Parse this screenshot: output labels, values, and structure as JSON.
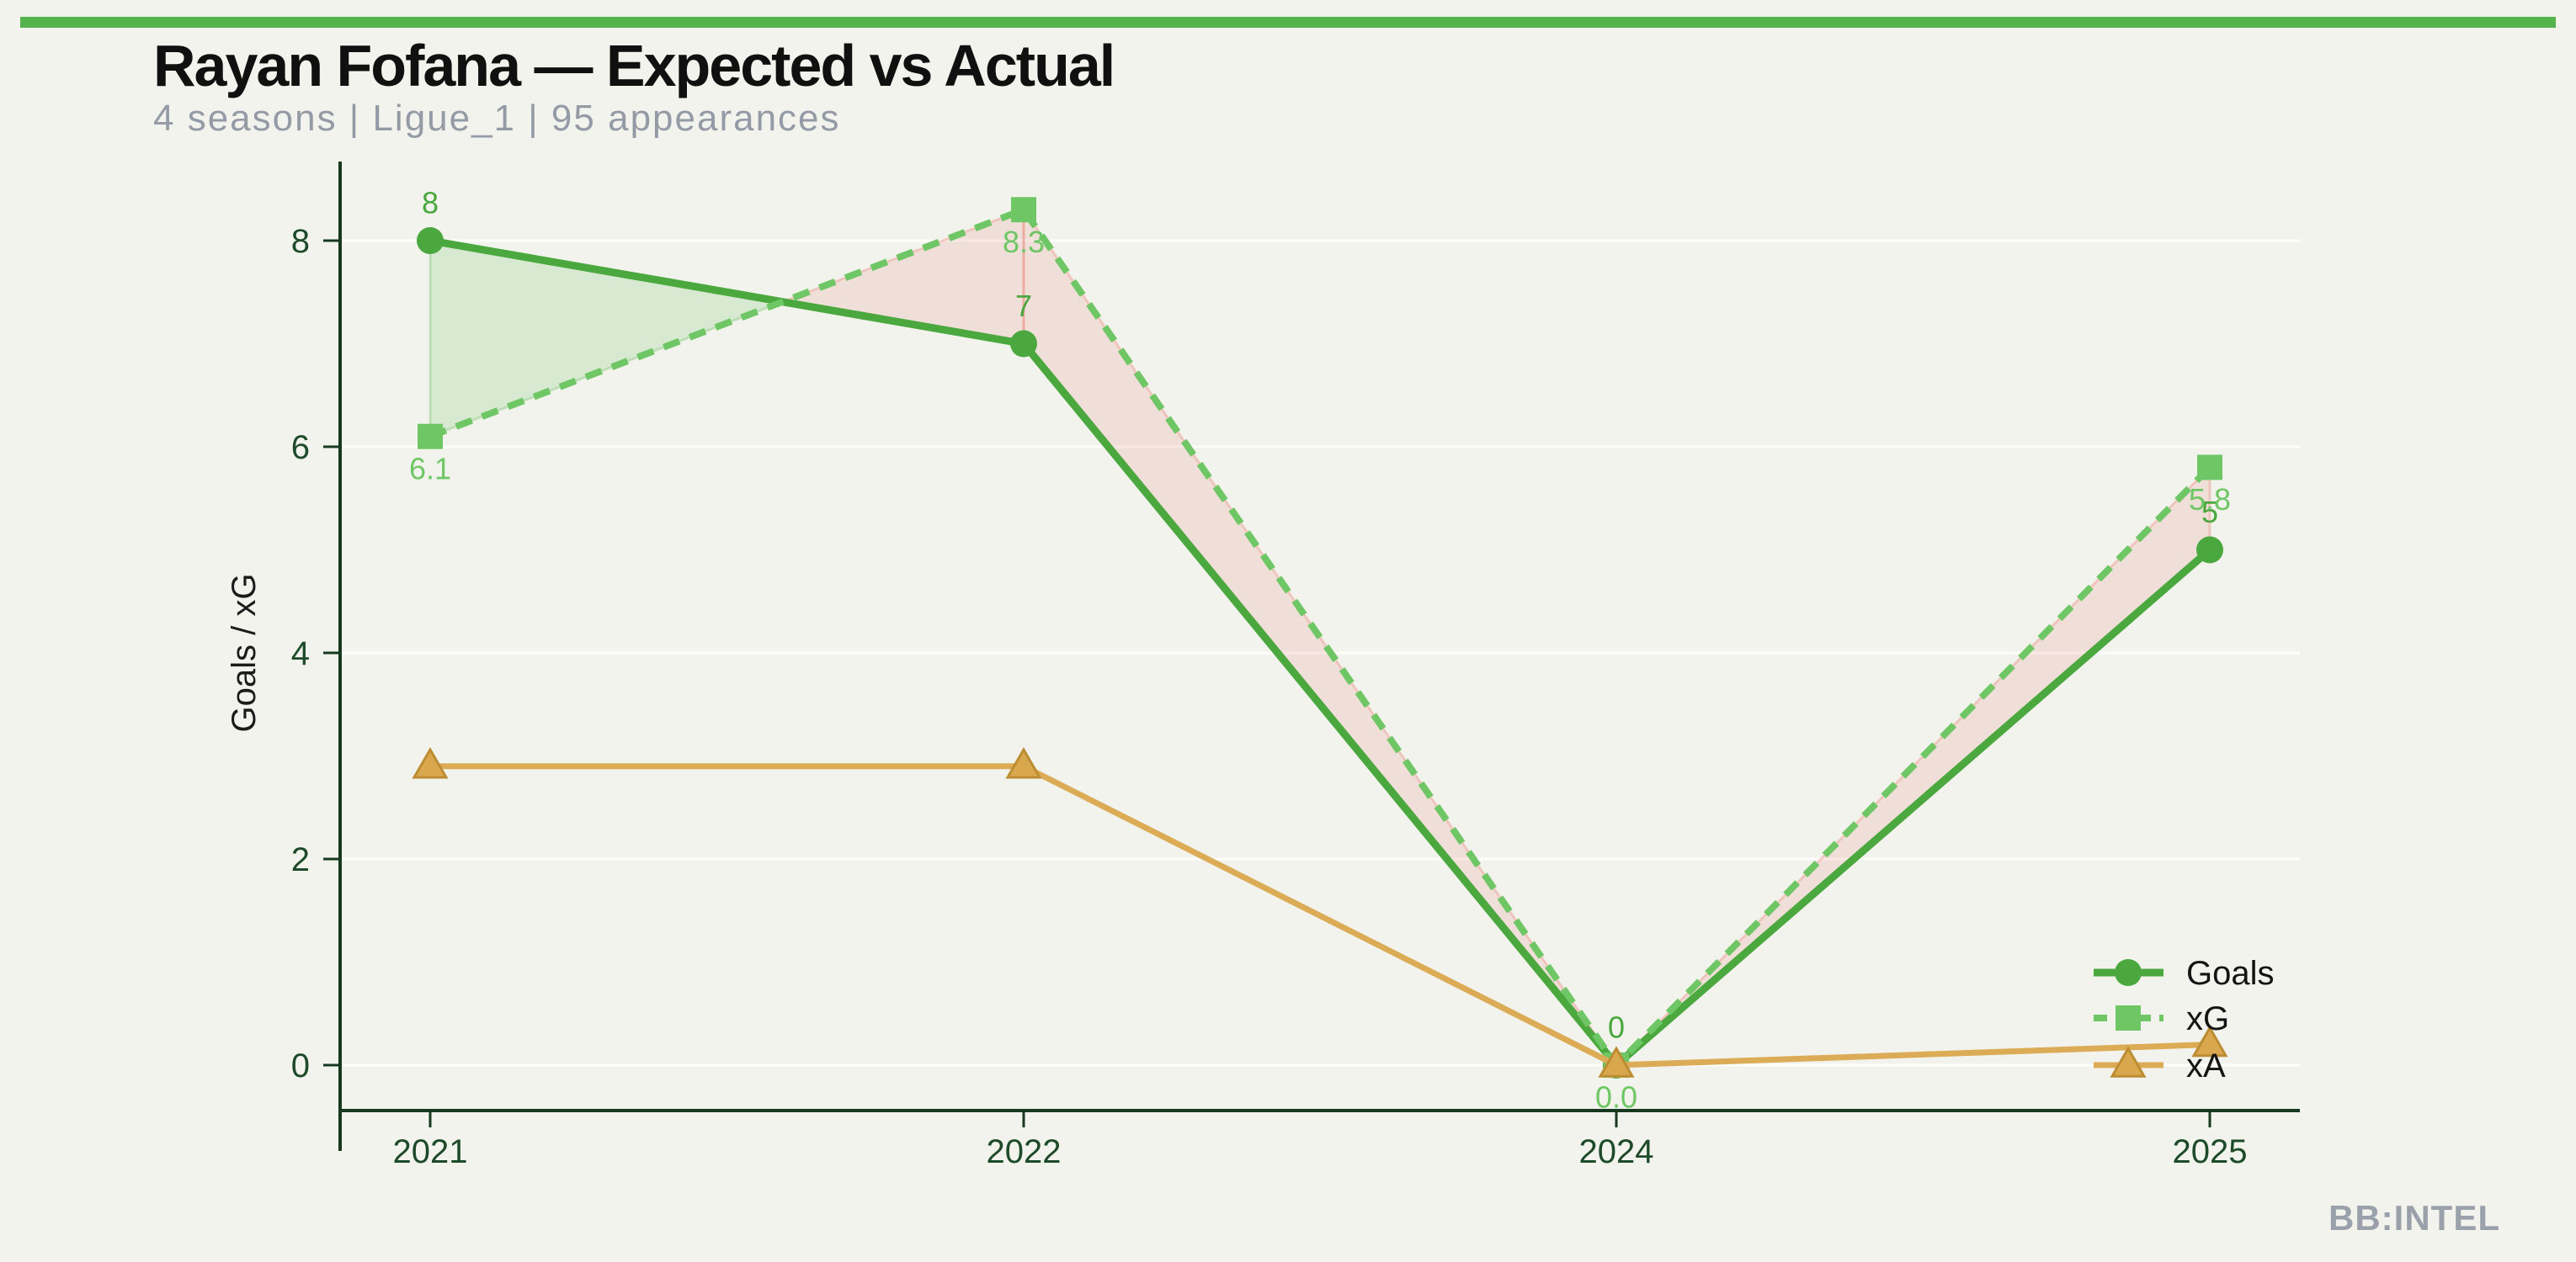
{
  "page": {
    "background": "#f2f3ec",
    "accent_bar_color": "#55b34c"
  },
  "header": {
    "title": "Rayan Fofana — Expected vs Actual",
    "title_color": "#101010",
    "subtitle": "4 seasons | Ligue_1 | 95 appearances",
    "subtitle_color": "#959ba6"
  },
  "watermark": {
    "label": "BB:INTEL",
    "color": "#9aa1ab"
  },
  "chart_data": {
    "type": "line",
    "title": "Rayan Fofana — Expected vs Actual",
    "subtitle": "4 seasons | Ligue_1 | 95 appearances",
    "categories": [
      "2021",
      "2022",
      "2024",
      "2025"
    ],
    "xlabel": "",
    "ylabel": "Goals / xG",
    "yticks": [
      0,
      2,
      4,
      6,
      8
    ],
    "ylim": [
      -0.45,
      8.8
    ],
    "grid": "horizontal-faint",
    "grid_color": "rgba(255,255,255,0.8)",
    "axis_color": "#17391f",
    "tick_label_color": "#1d4a28",
    "ylabel_color": "#1b1b1b",
    "legend_position": "lower-right",
    "legend_text_color": "#141414",
    "series": [
      {
        "name": "Goals",
        "style": "solid",
        "marker": "circle",
        "color": "#4aa83e",
        "values": [
          8,
          7,
          0,
          5
        ],
        "labels": [
          "8",
          "7",
          "0",
          "5"
        ],
        "label_position": "above"
      },
      {
        "name": "xG",
        "style": "dashed",
        "marker": "square",
        "color": "#6ec764",
        "values": [
          6.1,
          8.3,
          0.0,
          5.8
        ],
        "labels": [
          "6.1",
          "8.3",
          "0.0",
          "5.8"
        ],
        "label_position": "below"
      },
      {
        "name": "xA",
        "style": "solid",
        "marker": "triangle",
        "color": "#dcab55",
        "marker_color": "#d9a84e",
        "marker_edge": "#bd8d33",
        "values": [
          2.9,
          2.9,
          0.0,
          0.2
        ],
        "labels": [],
        "label_position": "none"
      }
    ],
    "fill_between": {
      "series_a": "Goals",
      "series_b": "xG",
      "positive_color": "rgba(109,197,103,0.20)",
      "positive_edge": "rgba(120,196,110,0.35)",
      "negative_color": "rgba(233,120,109,0.16)",
      "negative_edge": "rgba(236,146,134,0.40)"
    }
  }
}
